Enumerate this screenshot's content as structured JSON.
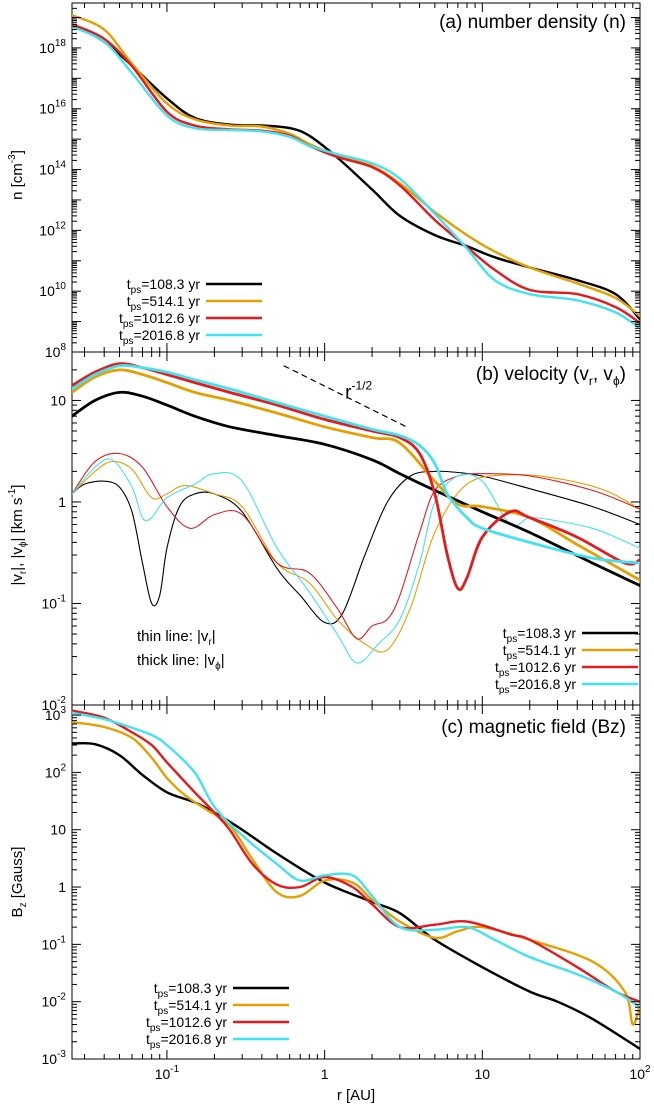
{
  "chart_data": [
    {
      "type": "line",
      "panel": "a",
      "title": "(a) number density (n)",
      "ylabel": "n [cm^-3]",
      "xlabel": "r [AU]",
      "xscale": "log",
      "yscale": "log",
      "xlim": [
        0.025,
        100
      ],
      "ylim": [
        100000000.0,
        3e+19
      ],
      "ytick_labels": [
        "10^8",
        "10^10",
        "10^12",
        "10^14",
        "10^16",
        "10^18"
      ],
      "legend": "bottom-left",
      "series": [
        {
          "name": "tps=108.3 yr",
          "label_main": "t",
          "label_sub": "ps",
          "label_rest": "=108.3 yr",
          "color": "#000000",
          "x": [
            0.025,
            0.04,
            0.06,
            0.1,
            0.15,
            0.25,
            0.4,
            0.6,
            0.8,
            1.2,
            2,
            3,
            5,
            8,
            12,
            20,
            40,
            70,
            100
          ],
          "y": [
            6e+18,
            1.6e+18,
            2.6e+17,
            2.2e+16,
            5000000000000000.0,
            3000000000000000.0,
            2800000000000000.0,
            2300000000000000.0,
            1300000000000000.0,
            250000000000000.0,
            22000000000000.0,
            3000000000000.0,
            700000000000.0,
            300000000000.0,
            130000000000.0,
            60000000000.0,
            23000000000.0,
            8000000000.0,
            1200000000.0
          ]
        },
        {
          "name": "tps=514.1 yr",
          "label_main": "t",
          "label_sub": "ps",
          "label_rest": "=514.1 yr",
          "color": "#E69F00",
          "x": [
            0.025,
            0.04,
            0.06,
            0.1,
            0.15,
            0.25,
            0.4,
            0.6,
            0.8,
            1.2,
            2,
            3,
            5,
            8,
            12,
            20,
            40,
            70,
            100
          ],
          "y": [
            1.2e+19,
            4e+18,
            3e+17,
            1.5e+16,
            4500000000000000.0,
            2800000000000000.0,
            2600000000000000.0,
            1500000000000000.0,
            700000000000000.0,
            280000000000000.0,
            130000000000000.0,
            35000000000000.0,
            4000000000000.0,
            700000000000.0,
            200000000000.0,
            60000000000.0,
            18000000000.0,
            6000000000.0,
            1500000000.0
          ]
        },
        {
          "name": "tps=1012.6 yr",
          "label_main": "t",
          "label_sub": "ps",
          "label_rest": "=1012.6 yr",
          "color": "#E41A1C",
          "x": [
            0.025,
            0.04,
            0.06,
            0.1,
            0.15,
            0.25,
            0.4,
            0.6,
            0.8,
            1.2,
            2,
            3,
            5,
            8,
            12,
            20,
            40,
            70,
            100
          ],
          "y": [
            6e+18,
            2e+18,
            2.5e+17,
            8000000000000000.0,
            2800000000000000.0,
            2100000000000000.0,
            1900000000000000.0,
            1300000000000000.0,
            600000000000000.0,
            260000000000000.0,
            120000000000000.0,
            30000000000000.0,
            2200000000000.0,
            280000000000.0,
            50000000000.0,
            11000000000.0,
            8000000000.0,
            3000000000.0,
            900000000.0
          ]
        },
        {
          "name": "tps=2016.8 yr",
          "label_main": "t",
          "label_sub": "ps",
          "label_rest": "=2016.8 yr",
          "color": "#41E2F2",
          "x": [
            0.025,
            0.04,
            0.06,
            0.1,
            0.15,
            0.25,
            0.4,
            0.6,
            0.8,
            1.2,
            2,
            3,
            5,
            8,
            12,
            20,
            40,
            70,
            100
          ],
          "y": [
            5e+18,
            1.6e+18,
            1.5e+17,
            6000000000000000.0,
            2300000000000000.0,
            2000000000000000.0,
            1800000000000000.0,
            1200000000000000.0,
            600000000000000.0,
            320000000000000.0,
            160000000000000.0,
            50000000000000.0,
            3500000000000.0,
            250000000000.0,
            23000000000.0,
            8000000000.0,
            5000000000.0,
            2000000000.0,
            600000000.0
          ]
        }
      ]
    },
    {
      "type": "line",
      "panel": "b",
      "title": "(b) velocity (vr, vphi)",
      "ylabel": "|vr|, |vphi| [km s^-1]",
      "xlabel": "r [AU]",
      "xscale": "log",
      "yscale": "log",
      "xlim": [
        0.025,
        100
      ],
      "ylim": [
        0.01,
        30
      ],
      "ytick_labels": [
        "10^-2",
        "10^-1",
        "1",
        "10"
      ],
      "legend": "bottom-right",
      "notes": [
        "thin line: |vr|",
        "thick line: |vphi|"
      ],
      "guide": {
        "label": "r^-1/2",
        "x": [
          0.55,
          3.3
        ],
        "y": [
          22,
          5.5
        ]
      },
      "series": [
        {
          "name": "tps=108.3 yr |vphi|",
          "color": "#000000",
          "style": "thick",
          "x": [
            0.025,
            0.035,
            0.05,
            0.07,
            0.1,
            0.15,
            0.25,
            0.5,
            1,
            2,
            3,
            5,
            10,
            20,
            50,
            100
          ],
          "y": [
            7,
            10,
            12,
            11,
            9,
            7,
            5.5,
            4.5,
            3.7,
            2.6,
            1.9,
            1.3,
            0.8,
            0.5,
            0.25,
            0.15
          ]
        },
        {
          "name": "tps=514.1 yr |vphi|",
          "color": "#E69F00",
          "style": "thick",
          "x": [
            0.025,
            0.035,
            0.05,
            0.07,
            0.1,
            0.15,
            0.25,
            0.5,
            1,
            2,
            3,
            5,
            7,
            10,
            20,
            40,
            100
          ],
          "y": [
            12,
            17,
            20,
            18,
            15,
            12,
            10,
            7.5,
            5.5,
            4.3,
            3.8,
            1.6,
            0.95,
            0.9,
            0.7,
            0.38,
            0.17
          ]
        },
        {
          "name": "tps=1012.6 yr |vphi|",
          "color": "#E41A1C",
          "style": "thick",
          "x": [
            0.025,
            0.035,
            0.05,
            0.07,
            0.1,
            0.15,
            0.25,
            0.5,
            1,
            2,
            3,
            4,
            5,
            6,
            7,
            8,
            10,
            15,
            20,
            40,
            80,
            100
          ],
          "y": [
            14,
            19,
            23,
            21,
            18,
            15,
            12,
            9,
            6.5,
            5,
            4.3,
            3,
            1.2,
            0.3,
            0.14,
            0.18,
            0.45,
            0.8,
            0.7,
            0.45,
            0.25,
            0.27
          ]
        },
        {
          "name": "tps=2016.8 yr |vphi|",
          "color": "#41E2F2",
          "style": "thick",
          "x": [
            0.025,
            0.035,
            0.05,
            0.07,
            0.1,
            0.15,
            0.25,
            0.5,
            1,
            2,
            3,
            4,
            5,
            6,
            8,
            10,
            20,
            50,
            100
          ],
          "y": [
            13,
            18,
            22,
            21,
            19,
            16,
            13,
            9.5,
            7,
            5.2,
            4.5,
            3.6,
            2.4,
            1.2,
            0.7,
            0.55,
            0.4,
            0.28,
            0.25
          ]
        },
        {
          "name": "tps=108.3 yr |vr|",
          "color": "#000000",
          "style": "thin",
          "x": [
            0.025,
            0.03,
            0.04,
            0.05,
            0.06,
            0.07,
            0.08,
            0.09,
            0.1,
            0.12,
            0.15,
            0.2,
            0.3,
            0.5,
            0.7,
            1,
            1.3,
            1.8,
            2.5,
            3.5,
            5,
            7,
            10,
            20,
            50,
            100
          ],
          "y": [
            1.2,
            1.5,
            1.6,
            1.4,
            0.8,
            0.25,
            0.1,
            0.12,
            0.35,
            0.9,
            1.2,
            1.2,
            0.8,
            0.22,
            0.12,
            0.065,
            0.08,
            0.3,
            1.0,
            1.8,
            2.0,
            1.95,
            1.8,
            1.35,
            0.9,
            0.6
          ]
        },
        {
          "name": "tps=514.1 yr |vr|",
          "color": "#E69F00",
          "style": "thin",
          "x": [
            0.025,
            0.035,
            0.045,
            0.06,
            0.08,
            0.1,
            0.13,
            0.2,
            0.3,
            0.5,
            0.8,
            1.2,
            1.8,
            2.5,
            3.5,
            5,
            8,
            15,
            30,
            60,
            100
          ],
          "y": [
            1.2,
            2,
            2.5,
            2.1,
            1.1,
            1.2,
            1.45,
            1.2,
            0.9,
            0.25,
            0.16,
            0.07,
            0.04,
            0.035,
            0.09,
            0.5,
            1.5,
            1.85,
            1.7,
            1.3,
            0.85
          ]
        },
        {
          "name": "tps=1012.6 yr |vr|",
          "color": "#E41A1C",
          "style": "thin",
          "x": [
            0.025,
            0.035,
            0.05,
            0.07,
            0.1,
            0.14,
            0.2,
            0.3,
            0.5,
            0.8,
            1.2,
            1.6,
            2,
            2.5,
            3,
            4,
            5,
            7,
            10,
            20,
            50,
            100
          ],
          "y": [
            1.2,
            2.5,
            3.0,
            2.2,
            0.9,
            0.55,
            0.75,
            0.75,
            0.25,
            0.2,
            0.09,
            0.045,
            0.06,
            0.07,
            0.12,
            0.5,
            1.3,
            1.8,
            1.9,
            1.8,
            1.3,
            0.85
          ]
        },
        {
          "name": "tps=2016.8 yr |vr|",
          "color": "#41E2F2",
          "style": "thin",
          "x": [
            0.025,
            0.035,
            0.045,
            0.06,
            0.07,
            0.08,
            0.1,
            0.15,
            0.2,
            0.3,
            0.5,
            0.8,
            1.2,
            1.6,
            2.2,
            3,
            4,
            5,
            7,
            10,
            15,
            20,
            30,
            50,
            70,
            100
          ],
          "y": [
            1.2,
            2.2,
            2.6,
            1.4,
            0.7,
            0.7,
            1.1,
            1.5,
            1.9,
            1.6,
            0.35,
            0.13,
            0.05,
            0.026,
            0.04,
            0.07,
            0.25,
            1.0,
            1.8,
            1.6,
            0.6,
            0.7,
            0.65,
            0.55,
            0.45,
            0.35
          ]
        }
      ]
    },
    {
      "type": "line",
      "panel": "c",
      "title": "(c) magnetic field (Bz)",
      "ylabel": "Bz [Gauss]",
      "xlabel": "r [AU]",
      "xscale": "log",
      "yscale": "log",
      "xlim": [
        0.025,
        100
      ],
      "ylim": [
        0.001,
        1500
      ],
      "ytick_labels": [
        "10^-3",
        "10^-2",
        "10^-1",
        "1",
        "10",
        "10^2",
        "10^3"
      ],
      "xtick_labels": [
        "10^-1",
        "1",
        "10",
        "10^2"
      ],
      "legend": "bottom-left",
      "series": [
        {
          "name": "tps=108.3 yr",
          "color": "#000000",
          "x": [
            0.025,
            0.035,
            0.05,
            0.07,
            0.1,
            0.15,
            0.2,
            0.3,
            0.5,
            1,
            2,
            3,
            5,
            10,
            20,
            30,
            50,
            100
          ],
          "y": [
            320,
            310,
            200,
            90,
            45,
            30,
            20,
            10,
            3.8,
            1.2,
            0.55,
            0.35,
            0.12,
            0.04,
            0.015,
            0.01,
            0.005,
            0.0015
          ]
        },
        {
          "name": "tps=514.1 yr",
          "color": "#E69F00",
          "x": [
            0.025,
            0.04,
            0.06,
            0.08,
            0.1,
            0.13,
            0.18,
            0.25,
            0.35,
            0.5,
            0.7,
            1,
            1.5,
            2,
            3,
            5,
            7,
            10,
            20,
            50,
            80,
            90,
            100
          ],
          "y": [
            750,
            620,
            400,
            180,
            80,
            40,
            22,
            12,
            3,
            0.8,
            0.7,
            1.3,
            1.2,
            0.6,
            0.25,
            0.13,
            0.17,
            0.2,
            0.12,
            0.05,
            0.015,
            0.004,
            0.009
          ]
        },
        {
          "name": "tps=1012.6 yr",
          "color": "#E41A1C",
          "x": [
            0.025,
            0.04,
            0.06,
            0.08,
            0.1,
            0.15,
            0.2,
            0.25,
            0.35,
            0.5,
            0.7,
            1,
            1.5,
            2,
            3,
            5,
            8,
            15,
            20,
            40,
            70,
            100
          ],
          "y": [
            1200,
            900,
            500,
            300,
            150,
            45,
            20,
            10,
            2.5,
            1.1,
            1.0,
            1.5,
            1.0,
            0.5,
            0.2,
            0.22,
            0.25,
            0.15,
            0.12,
            0.04,
            0.015,
            0.01
          ]
        },
        {
          "name": "tps=2016.8 yr",
          "color": "#41E2F2",
          "x": [
            0.025,
            0.04,
            0.06,
            0.08,
            0.1,
            0.15,
            0.2,
            0.3,
            0.5,
            0.7,
            1,
            1.5,
            2,
            3,
            5,
            8,
            12,
            20,
            40,
            70,
            100
          ],
          "y": [
            1100,
            850,
            600,
            450,
            300,
            100,
            25,
            8,
            2.5,
            1.3,
            1.6,
            1.6,
            0.7,
            0.2,
            0.18,
            0.2,
            0.12,
            0.06,
            0.03,
            0.015,
            0.008
          ]
        }
      ]
    }
  ],
  "labels": {
    "panel_a": {
      "title": "(a) number density (n)",
      "ylabel_main": "n [cm",
      "ylabel_sup": "-3",
      "ylabel_end": "]"
    },
    "panel_b": {
      "title_start": "(b) velocity (v",
      "title_sub1": "r",
      "title_mid": ", v",
      "title_sub2": "ϕ",
      "title_end": ")",
      "ylabel_text": "|v",
      "ylabel_sub1": "r",
      "ylabel_mid": "|, |v",
      "ylabel_sub2": "ϕ",
      "ylabel_mid2": "|  [km s",
      "ylabel_sup": "-1",
      "ylabel_end": "]",
      "note1_start": "thin line: |v",
      "note1_sub": "r",
      "note1_end": "|",
      "note2_start": "thick line: |v",
      "note2_sub": "ϕ",
      "note2_end": "|",
      "guide_main": "r",
      "guide_sup": "-1/2"
    },
    "panel_c": {
      "title": "(c) magnetic field  (Bz)",
      "ylabel_main": "B",
      "ylabel_sub": "z",
      "ylabel_end": " [Gauss]"
    },
    "xlabel": "r [AU]"
  }
}
